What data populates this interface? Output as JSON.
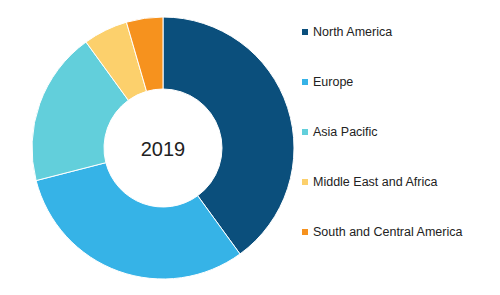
{
  "chart_data": {
    "type": "donut",
    "title": "2019",
    "categories": [
      "North America",
      "Europe",
      "Asia Pacific",
      "Middle East and Africa",
      "South and Central America"
    ],
    "values": [
      40,
      31,
      19,
      5.5,
      4.5
    ],
    "colors": [
      "#0b4f7c",
      "#36b3e7",
      "#62cfdb",
      "#fcd06c",
      "#f6921e"
    ],
    "legend": "right",
    "data_labels": false
  }
}
